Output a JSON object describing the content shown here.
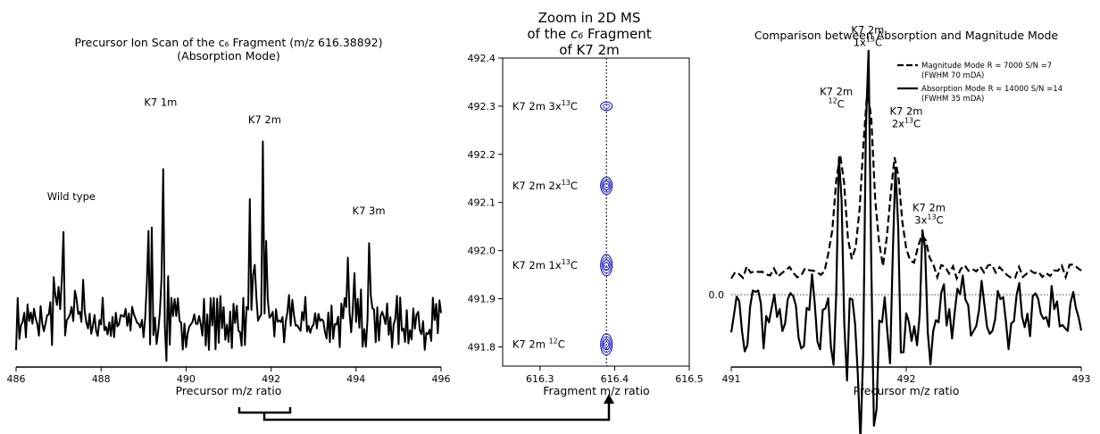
{
  "chart_data": [
    {
      "type": "line",
      "title_line1": "Precursor Ion Scan of the c₆ Fragment (m/z 616.38892)",
      "title_line2": "(Absorption Mode)",
      "xlabel": "Precursor m/z ratio",
      "xlim": [
        486,
        496
      ],
      "xticks": [
        "486",
        "488",
        "490",
        "492",
        "494",
        "496"
      ],
      "ylim": [
        -0.6,
        3.4
      ],
      "peaks": [
        {
          "x": 486.9,
          "y": 0.85
        },
        {
          "x": 487.0,
          "y": 0.55
        },
        {
          "x": 487.1,
          "y": 1.55
        },
        {
          "x": 487.3,
          "y": 0.6
        },
        {
          "x": 487.4,
          "y": 1.0
        },
        {
          "x": 487.6,
          "y": 0.85
        },
        {
          "x": 489.1,
          "y": 1.6
        },
        {
          "x": 489.2,
          "y": 1.2
        },
        {
          "x": 489.45,
          "y": 2.95
        },
        {
          "x": 489.55,
          "y": 2.2
        },
        {
          "x": 491.5,
          "y": 1.9
        },
        {
          "x": 491.6,
          "y": 1.1
        },
        {
          "x": 491.8,
          "y": 2.65
        },
        {
          "x": 491.9,
          "y": 1.8
        },
        {
          "x": 493.8,
          "y": 0.8
        },
        {
          "x": 493.95,
          "y": 0.7
        },
        {
          "x": 494.1,
          "y": 0.9
        },
        {
          "x": 494.3,
          "y": 1.35
        },
        {
          "x": 494.4,
          "y": 0.8
        }
      ],
      "annotations": [
        {
          "text": "Wild type",
          "x": 487.3,
          "y": 1.75
        },
        {
          "text": "K7 1m",
          "x": 489.4,
          "y": 3.1
        },
        {
          "text": "K7 2m",
          "x": 491.85,
          "y": 2.85
        },
        {
          "text": "K7 3m",
          "x": 494.3,
          "y": 1.55
        }
      ]
    },
    {
      "type": "heatmap",
      "title_lines": [
        "Zoom in 2D MS",
        "of the c₆ Fragment",
        "of K7 2m"
      ],
      "xlabel": "Fragment m/z ratio",
      "xlim": [
        616.25,
        616.5
      ],
      "ylim": [
        491.76,
        492.4
      ],
      "xticks": [
        "616.3",
        "616.4",
        "616.5"
      ],
      "yticks": [
        "491.8",
        "491.9",
        "492.0",
        "492.1",
        "492.2",
        "492.3",
        "492.4"
      ],
      "vline_x": 616.389,
      "spots": [
        {
          "x": 616.389,
          "y": 491.805,
          "height": 0.022,
          "levels": 4
        },
        {
          "x": 616.389,
          "y": 491.97,
          "height": 0.022,
          "levels": 4
        },
        {
          "x": 616.389,
          "y": 492.135,
          "height": 0.018,
          "levels": 4
        },
        {
          "x": 616.389,
          "y": 492.3,
          "height": 0.009,
          "levels": 2
        }
      ],
      "labels": [
        {
          "text": "K7 2m ",
          "sup": "12",
          "tail": "C",
          "x": 616.263,
          "y": 491.805,
          "sup_first": true
        },
        {
          "text": "K7 2m 1x",
          "sup": "13",
          "tail": "C",
          "x": 616.263,
          "y": 491.97,
          "sup_first": false
        },
        {
          "text": "K7 2m 2x",
          "sup": "13",
          "tail": "C",
          "x": 616.263,
          "y": 492.135,
          "sup_first": false
        },
        {
          "text": "K7 2m 3x",
          "sup": "13",
          "tail": "C",
          "x": 616.263,
          "y": 492.3,
          "sup_first": false
        }
      ]
    },
    {
      "type": "line",
      "title": "Comparison between Absorption and Magnitude Mode",
      "xlabel": "Precursor m/z ratio",
      "xlim": [
        491,
        493
      ],
      "xticks": [
        "491",
        "492",
        "493"
      ],
      "ylim": [
        -0.6,
        2.0
      ],
      "ytick": "0.0",
      "series": [
        {
          "name": "Magnitude Mode R = 7000 S/N =7",
          "sub": "(FWHM 70 mDA)",
          "dash": true,
          "peaks": [
            {
              "x": 491.62,
              "y": 1.0,
              "w": 0.045
            },
            {
              "x": 491.78,
              "y": 1.55,
              "w": 0.045
            },
            {
              "x": 491.94,
              "y": 0.95,
              "w": 0.045
            },
            {
              "x": 492.1,
              "y": 0.3,
              "w": 0.04
            }
          ],
          "baseline": 0.2
        },
        {
          "name": "Absorption Mode R = 14000 S/N =14",
          "sub": "(FWHM 35 mDA)",
          "dash": false,
          "peaks": [
            {
              "x": 491.62,
              "y": 1.55,
              "w": 0.018
            },
            {
              "x": 491.78,
              "y": 2.05,
              "w": 0.018
            },
            {
              "x": 491.94,
              "y": 1.4,
              "w": 0.018
            },
            {
              "x": 492.1,
              "y": 0.55,
              "w": 0.016
            }
          ]
        }
      ],
      "annotations": [
        {
          "line1": "K7 2m",
          "pre": "",
          "sup": "12",
          "post": "C",
          "x": 491.6,
          "y": 1.72
        },
        {
          "line1": "K7 2m",
          "pre": "1x",
          "sup": "13",
          "post": "C",
          "x": 491.78,
          "y": 2.25
        },
        {
          "line1": "K7 2m",
          "pre": "2x",
          "sup": "13",
          "post": "C",
          "x": 492.0,
          "y": 1.55
        },
        {
          "line1": "K7 2m",
          "pre": "3x",
          "sup": "13",
          "post": "C",
          "x": 492.13,
          "y": 0.72
        }
      ]
    }
  ]
}
